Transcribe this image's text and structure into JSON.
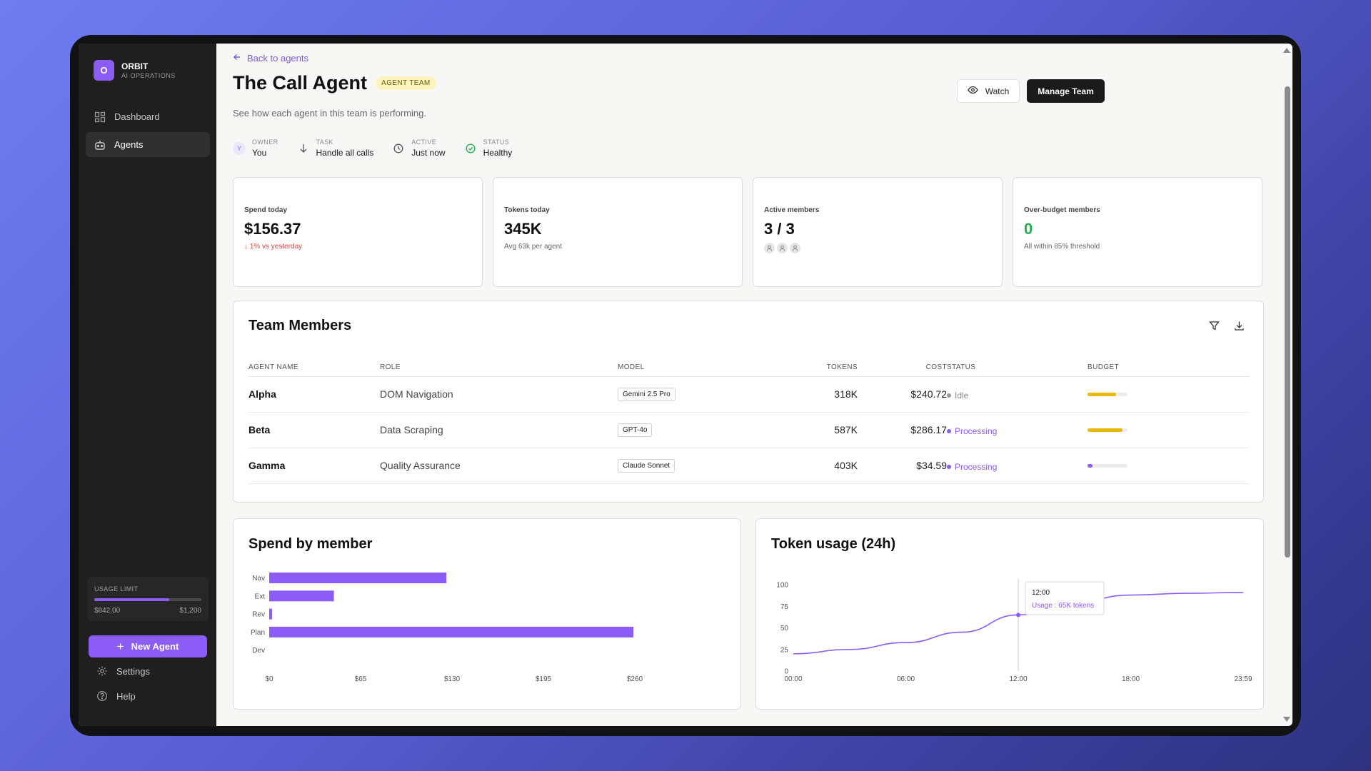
{
  "brand": {
    "initial": "O",
    "name": "ORBIT",
    "sub": "AI OPERATIONS"
  },
  "nav": [
    {
      "label": "Dashboard",
      "icon": "dashboard-icon",
      "active": false
    },
    {
      "label": "Agents",
      "icon": "robot-icon",
      "active": true
    }
  ],
  "usage": {
    "label": "USAGE LIMIT",
    "used": "$842.00",
    "limit": "$1,200",
    "fraction": 0.7
  },
  "new_agent_label": "New Agent",
  "footer_nav": [
    {
      "label": "Settings",
      "icon": "gear-icon"
    },
    {
      "label": "Help",
      "icon": "help-icon"
    }
  ],
  "back_label": "Back to agents",
  "page": {
    "title": "The Call Agent",
    "badge": "AGENT TEAM",
    "subtitle": "See how each agent in this team is performing."
  },
  "actions": {
    "watch": "Watch",
    "manage": "Manage Team"
  },
  "meta": {
    "owner": {
      "label": "OWNER",
      "value": "You",
      "initial": "Y"
    },
    "task": {
      "label": "TASK",
      "value": "Handle all calls"
    },
    "active": {
      "label": "ACTIVE",
      "value": "Just now"
    },
    "status": {
      "label": "STATUS",
      "value": "Healthy"
    }
  },
  "stats": {
    "spend": {
      "label": "Spend today",
      "value": "$156.37",
      "note": "1% vs yesterday"
    },
    "tokens": {
      "label": "Tokens today",
      "value": "345K",
      "note": "Avg 63k per agent"
    },
    "active": {
      "label": "Active members",
      "value": "3 / 3"
    },
    "over": {
      "label": "Over-budget members",
      "value": "0",
      "note": "All within 85% threshold"
    }
  },
  "team": {
    "title": "Team Members",
    "headers": {
      "name": "AGENT NAME",
      "role": "ROLE",
      "model": "MODEL",
      "tokens": "TOKENS",
      "cost": "COST",
      "status": "STATUS",
      "budget": "BUDGET"
    },
    "rows": [
      {
        "name": "Alpha",
        "role": "DOM Navigation",
        "model": "Gemini 2.5 Pro",
        "tokens": "318K",
        "cost": "$240.72",
        "status": "Idle",
        "status_color": "#9a9a9a",
        "budget": 0.72,
        "budget_color": "#e8b90c"
      },
      {
        "name": "Beta",
        "role": "Data Scraping",
        "model": "GPT-4o",
        "tokens": "587K",
        "cost": "$286.17",
        "status": "Processing",
        "status_color": "#8b5cf6",
        "budget": 0.88,
        "budget_color": "#e8b90c"
      },
      {
        "name": "Gamma",
        "role": "Quality Assurance",
        "model": "Claude Sonnet",
        "tokens": "403K",
        "cost": "$34.59",
        "status": "Processing",
        "status_color": "#8b5cf6",
        "budget": 0.13,
        "budget_color": "#8b5cf6"
      }
    ]
  },
  "chart_titles": {
    "spend": "Spend by member",
    "tokens": "Token usage (24h)"
  },
  "chart_data": [
    {
      "type": "bar",
      "orientation": "horizontal",
      "title": "Spend by member",
      "categories": [
        "Nav",
        "Ext",
        "Rev",
        "Plan",
        "Dev"
      ],
      "values": [
        126,
        46,
        2,
        259,
        0
      ],
      "xlim": [
        0,
        260
      ],
      "xticks": [
        "$0",
        "$65",
        "$130",
        "$195",
        "$260"
      ],
      "color": "#8b5cf6"
    },
    {
      "type": "line",
      "title": "Token usage (24h)",
      "x": [
        "00:00",
        "03:00",
        "06:00",
        "09:00",
        "12:00",
        "15:00",
        "18:00",
        "21:00",
        "23:59"
      ],
      "y": [
        20,
        25,
        33,
        45,
        65,
        80,
        88,
        90,
        91
      ],
      "ylim": [
        0,
        100
      ],
      "yticks": [
        "0",
        "25",
        "50",
        "75",
        "100"
      ],
      "xticks": [
        "00:00",
        "06:00",
        "12:00",
        "18:00",
        "23:59"
      ],
      "color": "#8b5cf6",
      "tooltip": {
        "time": "12:00",
        "text": "Usage : 65K tokens"
      }
    }
  ]
}
